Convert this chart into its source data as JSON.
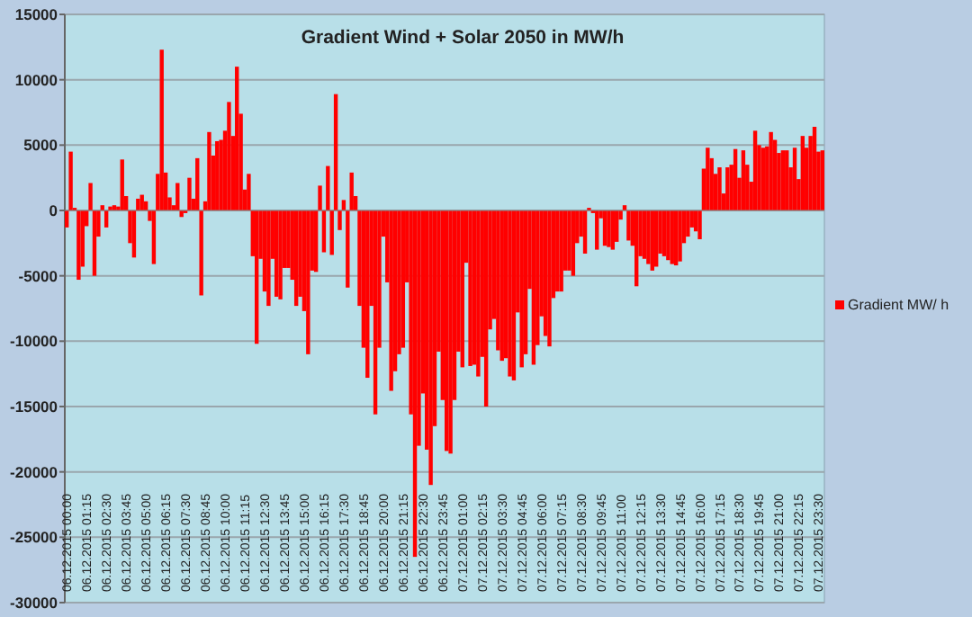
{
  "chart_data": {
    "type": "bar",
    "title": "Gradient Wind + Solar 2050 in MW/h",
    "categories": [
      "06.12.2015 00:00",
      null,
      null,
      null,
      null,
      "06.12.2015 01:15",
      null,
      null,
      null,
      null,
      "06.12.2015 02:30",
      null,
      null,
      null,
      null,
      "06.12.2015 03:45",
      null,
      null,
      null,
      null,
      "06.12.2015 05:00",
      null,
      null,
      null,
      null,
      "06.12.2015 06:15",
      null,
      null,
      null,
      null,
      "06.12.2015 07:30",
      null,
      null,
      null,
      null,
      "06.12.2015 08:45",
      null,
      null,
      null,
      null,
      "06.12.2015 10:00",
      null,
      null,
      null,
      null,
      "06.12.2015 11:15",
      null,
      null,
      null,
      null,
      "06.12.2015 12:30",
      null,
      null,
      null,
      null,
      "06.12.2015 13:45",
      null,
      null,
      null,
      null,
      "06.12.2015 15:00",
      null,
      null,
      null,
      null,
      "06.12.2015 16:15",
      null,
      null,
      null,
      null,
      "06.12.2015 17:30",
      null,
      null,
      null,
      null,
      "06.12.2015 18:45",
      null,
      null,
      null,
      null,
      "06.12.2015 20:00",
      null,
      null,
      null,
      null,
      "06.12.2015 21:15",
      null,
      null,
      null,
      null,
      "06.12.2015 22:30",
      null,
      null,
      null,
      null,
      "06.12.2015 23:45",
      null,
      null,
      null,
      null,
      "07.12.2015 01:00",
      null,
      null,
      null,
      null,
      "07.12.2015 02:15",
      null,
      null,
      null,
      null,
      "07.12.2015 03:30",
      null,
      null,
      null,
      null,
      "07.12.2015 04:45",
      null,
      null,
      null,
      null,
      "07.12.2015 06:00",
      null,
      null,
      null,
      null,
      "07.12.2015 07:15",
      null,
      null,
      null,
      null,
      "07.12.2015 08:30",
      null,
      null,
      null,
      null,
      "07.12.2015 09:45",
      null,
      null,
      null,
      null,
      "07.12.2015 11:00",
      null,
      null,
      null,
      null,
      "07.12.2015 12:15",
      null,
      null,
      null,
      null,
      "07.12.2015 13:30",
      null,
      null,
      null,
      null,
      "07.12.2015 14:45",
      null,
      null,
      null,
      null,
      "07.12.2015 16:00",
      null,
      null,
      null,
      null,
      "07.12.2015 17:15",
      null,
      null,
      null,
      null,
      "07.12.2015 18:30",
      null,
      null,
      null,
      null,
      "07.12.2015 19:45",
      null,
      null,
      null,
      null,
      "07.12.2015 21:00",
      null,
      null,
      null,
      null,
      "07.12.2015 22:15",
      null,
      null,
      null,
      null,
      "07.12.2015 23:30",
      null
    ],
    "series": [
      {
        "name": "Gradient MW/ h",
        "color": "#ff0000",
        "values": [
          -1300,
          4500,
          200,
          -5300,
          -4300,
          -1200,
          2100,
          -5000,
          -2000,
          400,
          -1300,
          300,
          400,
          300,
          3900,
          1100,
          -2500,
          -3600,
          900,
          1200,
          700,
          -800,
          -4100,
          2800,
          12300,
          2900,
          1000,
          400,
          2100,
          -500,
          -200,
          2500,
          900,
          4000,
          -6500,
          700,
          6000,
          4200,
          5300,
          5400,
          6100,
          8300,
          5700,
          11000,
          7400,
          1600,
          2800,
          -3500,
          -10200,
          -3700,
          -6200,
          -7300,
          -3700,
          -6600,
          -6800,
          -4400,
          -4400,
          -5300,
          -7300,
          -6600,
          -7700,
          -11000,
          -4600,
          -4700,
          1900,
          -3200,
          3400,
          -3400,
          8900,
          -1500,
          800,
          -5900,
          2900,
          1100,
          -7300,
          -10500,
          -12800,
          -7300,
          -15600,
          -10500,
          -2000,
          -5500,
          -13800,
          -12300,
          -11000,
          -10500,
          -5500,
          -15600,
          -26500,
          -18000,
          -14000,
          -18300,
          -21000,
          -16500,
          -10800,
          -14500,
          -18400,
          -18600,
          -14500,
          -10800,
          -12000,
          -4000,
          -11900,
          -11800,
          -12700,
          -11200,
          -15000,
          -9100,
          -8300,
          -10700,
          -11500,
          -11300,
          -12700,
          -13000,
          -7800,
          -12000,
          -11000,
          -6000,
          -11800,
          -10300,
          -8100,
          -9600,
          -10400,
          -6700,
          -6200,
          -6200,
          -4600,
          -4600,
          -5000,
          -2500,
          -2000,
          -3300,
          200,
          -200,
          -3000,
          -600,
          -2700,
          -2800,
          -3000,
          -2400,
          -700,
          400,
          -2300,
          -2700,
          -5800,
          -3500,
          -3700,
          -4100,
          -4600,
          -4300,
          -3300,
          -3500,
          -3800,
          -4100,
          -4200,
          -3900,
          -2500,
          -2000,
          -1300,
          -1600,
          -2200,
          3200,
          4800,
          4000,
          2800,
          3300,
          1300,
          3300,
          3500,
          4700,
          2500,
          4600,
          3500,
          2200,
          6100,
          5000,
          4800,
          4900,
          6000,
          5400,
          4400,
          4600,
          4600,
          3300,
          4800,
          2400,
          5700,
          4800,
          5700,
          6400,
          4500,
          4600
        ]
      }
    ],
    "ylim": [
      -30000,
      15000
    ],
    "yticks": [
      -30000,
      -25000,
      -20000,
      -15000,
      -10000,
      -5000,
      0,
      5000,
      10000,
      15000
    ],
    "grid": "y",
    "legend": "right"
  }
}
